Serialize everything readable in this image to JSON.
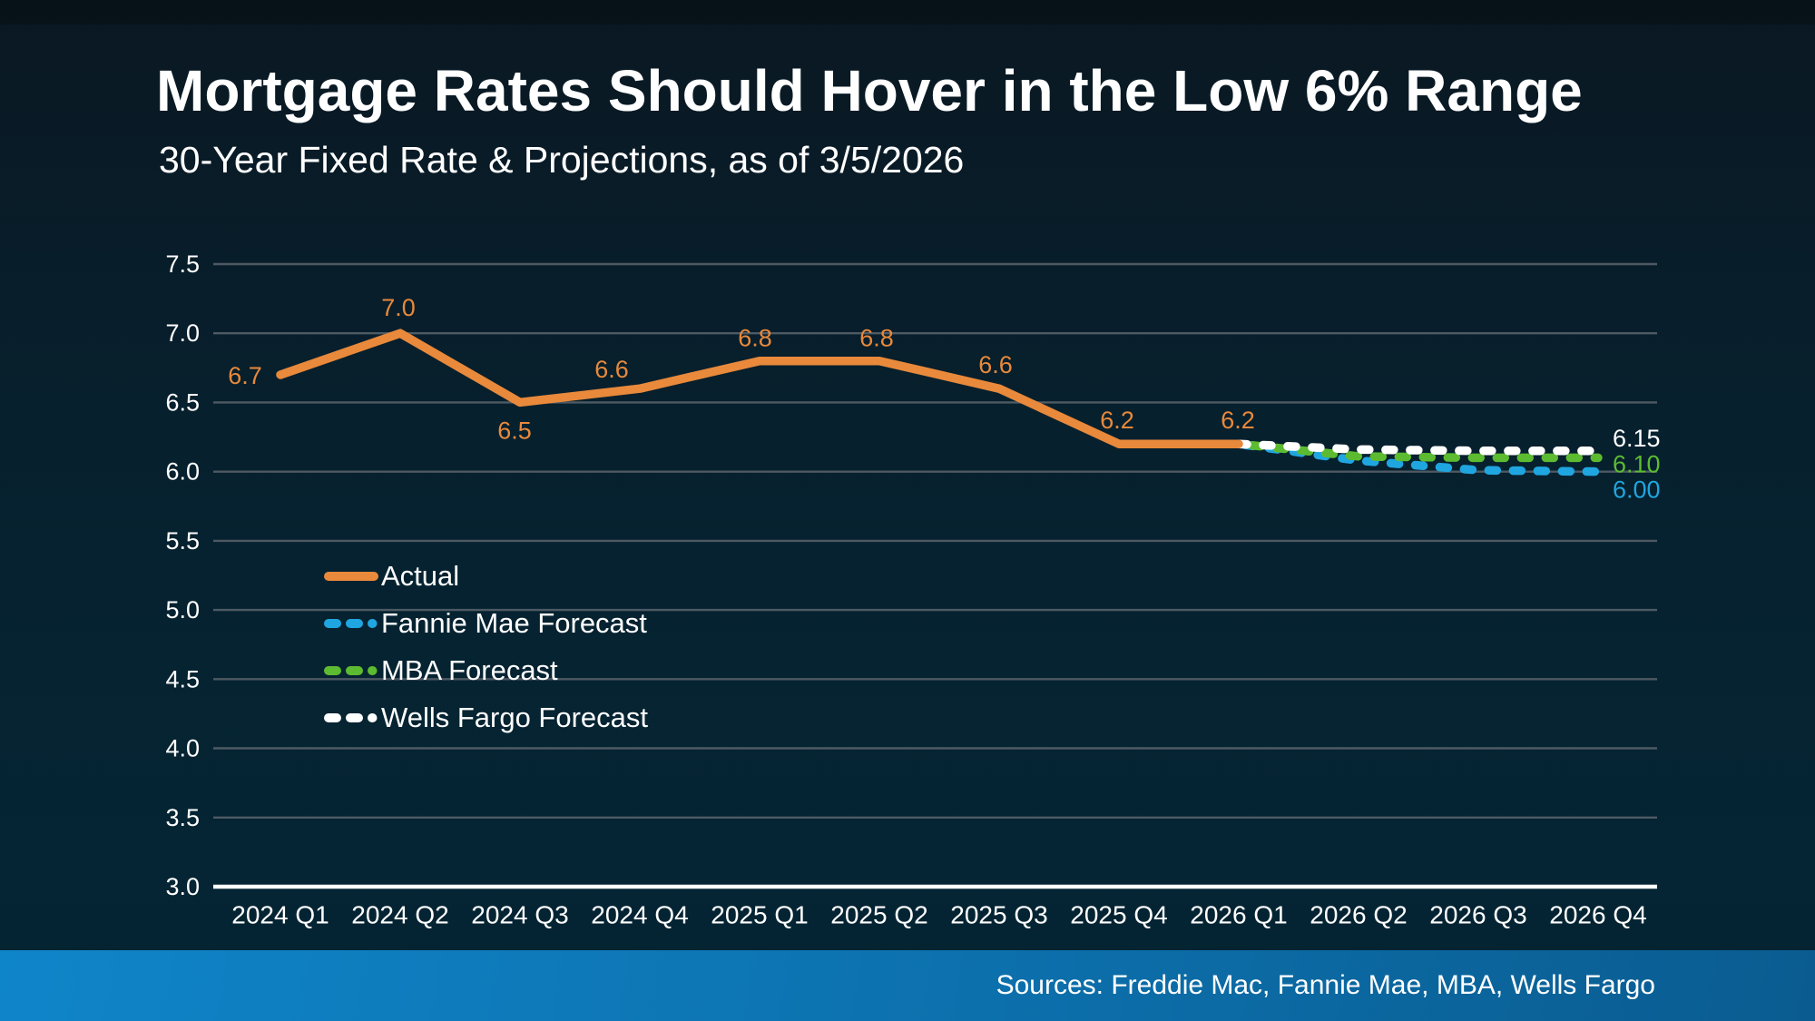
{
  "header": {
    "title": "Mortgage Rates Should Hover in the Low 6% Range",
    "subtitle": "30-Year Fixed Rate & Projections, as of 3/5/2026"
  },
  "footer": {
    "sources": "Sources: Freddie Mac, Fannie Mae, MBA, Wells Fargo"
  },
  "colors": {
    "background_top": "#0A1822",
    "background_bottom": "#052231",
    "actual_orange": "#E8893B",
    "fannie_blue": "#1FA6E0",
    "mba_green": "#5CBB31",
    "wells_white": "#FFFFFF",
    "gridline": "#4E5A63",
    "axis_line": "#FFFFFF",
    "footer_left": "#0F85C9",
    "footer_right": "#0A5C90",
    "text": "#FFFFFF"
  },
  "legend": {
    "items": [
      {
        "label": "Actual",
        "color": "#E8893B",
        "style": "solid"
      },
      {
        "label": "Fannie Mae Forecast",
        "color": "#1FA6E0",
        "style": "dashed"
      },
      {
        "label": "MBA Forecast",
        "color": "#5CBB31",
        "style": "dashed"
      },
      {
        "label": "Wells Fargo Forecast",
        "color": "#FFFFFF",
        "style": "dashed"
      }
    ]
  },
  "chart_data": {
    "type": "line",
    "title": "30-Year Fixed Rate & Projections, as of 3/5/2026",
    "xlabel": "",
    "ylabel": "",
    "ylim": [
      3.0,
      7.5
    ],
    "ytick_step": 0.5,
    "grid": true,
    "legend_position": "inside-left",
    "categories": [
      "2024 Q1",
      "2024 Q2",
      "2024 Q3",
      "2024 Q4",
      "2025 Q1",
      "2025 Q2",
      "2025 Q3",
      "2025 Q4",
      "2026 Q1",
      "2026 Q2",
      "2026 Q3",
      "2026 Q4"
    ],
    "yticks": [
      {
        "label": "7.5",
        "value": 7.5
      },
      {
        "label": "7.0",
        "value": 7.0
      },
      {
        "label": "6.5",
        "value": 6.5
      },
      {
        "label": "6.0",
        "value": 6.0
      },
      {
        "label": "5.5",
        "value": 5.5
      },
      {
        "label": "5.0",
        "value": 5.0
      },
      {
        "label": "4.5",
        "value": 4.5
      },
      {
        "label": "4.0",
        "value": 4.0
      },
      {
        "label": "3.5",
        "value": 3.5
      },
      {
        "label": "3.0",
        "value": 3.0
      }
    ],
    "series": [
      {
        "name": "Actual",
        "color": "#E8893B",
        "style": "solid",
        "start_index": 0,
        "values": [
          6.7,
          7.0,
          6.5,
          6.6,
          6.8,
          6.8,
          6.6,
          6.2,
          6.2
        ],
        "point_labels": [
          {
            "text": "6.7",
            "dx": -39,
            "dy": 1
          },
          {
            "text": "7.0",
            "dx": -2,
            "dy": -28
          },
          {
            "text": "6.5",
            "dx": -6,
            "dy": 31
          },
          {
            "text": "6.6",
            "dx": -31,
            "dy": -21
          },
          {
            "text": "6.8",
            "dx": -5,
            "dy": -25
          },
          {
            "text": "6.8",
            "dx": -3,
            "dy": -25
          },
          {
            "text": "6.6",
            "dx": -4,
            "dy": -26
          },
          {
            "text": "6.2",
            "dx": -2,
            "dy": -26
          },
          {
            "text": "6.2",
            "dx": -1,
            "dy": -26
          }
        ]
      },
      {
        "name": "Fannie Mae Forecast",
        "color": "#1FA6E0",
        "style": "dashed",
        "start_index": 8,
        "values": [
          6.2,
          6.08,
          6.01,
          6.0
        ],
        "end_label": "6.00",
        "end_label_dy": 20,
        "dash_offset": 20
      },
      {
        "name": "MBA Forecast",
        "color": "#5CBB31",
        "style": "dashed",
        "start_index": 8,
        "values": [
          6.2,
          6.11,
          6.1,
          6.1
        ],
        "end_label": "6.10",
        "end_label_dy": 7,
        "dash_offset": 12
      },
      {
        "name": "Wells Fargo Forecast",
        "color": "#FFFFFF",
        "style": "dashed",
        "start_index": 8,
        "values": [
          6.2,
          6.16,
          6.15,
          6.15
        ],
        "end_label": "6.15",
        "end_label_dy": -14,
        "dash_offset": 0
      }
    ]
  }
}
